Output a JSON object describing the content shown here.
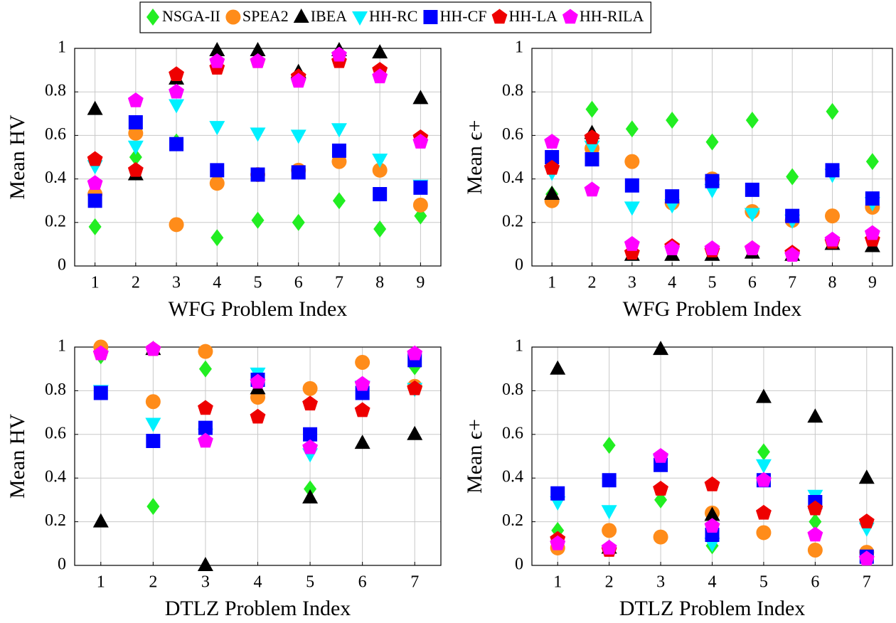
{
  "legend_position": "top",
  "chart_data": [
    {
      "type": "scatter",
      "x_label": "WFG Problem Index",
      "y_label": "Mean HV",
      "grid": true,
      "x": [
        1,
        2,
        3,
        4,
        5,
        6,
        7,
        8,
        9
      ],
      "xlim": [
        0.5,
        9.5
      ],
      "xticks": [
        1,
        2,
        3,
        4,
        5,
        6,
        7,
        8,
        9
      ],
      "ylim": [
        0,
        1
      ],
      "yticks": [
        0,
        0.2,
        0.4,
        0.6,
        0.8,
        1
      ],
      "series": [
        {
          "name": "NSGA-II",
          "color": "#22ee22",
          "marker": "diamond",
          "values": [
            0.18,
            0.5,
            0.57,
            0.13,
            0.21,
            0.2,
            0.3,
            0.17,
            0.23
          ]
        },
        {
          "name": "SPEA2",
          "color": "#ff8c1a",
          "marker": "circle",
          "values": [
            0.33,
            0.61,
            0.19,
            0.38,
            0.42,
            0.44,
            0.48,
            0.44,
            0.28
          ]
        },
        {
          "name": "IBEA",
          "color": "#000000",
          "marker": "triangle",
          "values": [
            0.72,
            0.42,
            0.86,
            0.99,
            0.99,
            0.89,
            0.99,
            0.98,
            0.77
          ]
        },
        {
          "name": "HH-RC",
          "color": "#00f0ff",
          "marker": "triangle-down",
          "values": [
            0.46,
            0.55,
            0.74,
            0.64,
            0.61,
            0.6,
            0.63,
            0.49,
            0.37
          ]
        },
        {
          "name": "HH-CF",
          "color": "#0000ff",
          "marker": "square",
          "values": [
            0.3,
            0.66,
            0.56,
            0.44,
            0.42,
            0.43,
            0.53,
            0.33,
            0.36
          ]
        },
        {
          "name": "HH-LA",
          "color": "#ee0000",
          "marker": "pentagon",
          "values": [
            0.49,
            0.44,
            0.88,
            0.91,
            0.94,
            0.87,
            0.94,
            0.9,
            0.59
          ]
        },
        {
          "name": "HH-RILA",
          "color": "#ff00ff",
          "marker": "pentagon",
          "values": [
            0.38,
            0.76,
            0.8,
            0.94,
            0.94,
            0.85,
            0.97,
            0.87,
            0.57
          ]
        }
      ]
    },
    {
      "type": "scatter",
      "x_label": "WFG Problem Index",
      "y_label": "Mean ϵ+",
      "grid": true,
      "x": [
        1,
        2,
        3,
        4,
        5,
        6,
        7,
        8,
        9
      ],
      "xlim": [
        0.5,
        9.5
      ],
      "xticks": [
        1,
        2,
        3,
        4,
        5,
        6,
        7,
        8,
        9
      ],
      "ylim": [
        0,
        1
      ],
      "yticks": [
        0,
        0.2,
        0.4,
        0.6,
        0.8,
        1
      ],
      "series": [
        {
          "name": "NSGA-II",
          "color": "#22ee22",
          "marker": "diamond",
          "values": [
            0.33,
            0.72,
            0.63,
            0.67,
            0.57,
            0.67,
            0.41,
            0.71,
            0.48
          ]
        },
        {
          "name": "SPEA2",
          "color": "#ff8c1a",
          "marker": "circle",
          "values": [
            0.3,
            0.54,
            0.48,
            0.29,
            0.4,
            0.25,
            0.21,
            0.23,
            0.27
          ]
        },
        {
          "name": "IBEA",
          "color": "#000000",
          "marker": "triangle",
          "values": [
            0.33,
            0.61,
            0.05,
            0.05,
            0.05,
            0.06,
            0.05,
            0.1,
            0.09
          ]
        },
        {
          "name": "HH-RC",
          "color": "#00f0ff",
          "marker": "triangle-down",
          "values": [
            0.43,
            0.55,
            0.27,
            0.28,
            0.35,
            0.24,
            0.21,
            0.42,
            0.29
          ]
        },
        {
          "name": "HH-CF",
          "color": "#0000ff",
          "marker": "square",
          "values": [
            0.5,
            0.49,
            0.37,
            0.32,
            0.39,
            0.35,
            0.23,
            0.44,
            0.31
          ]
        },
        {
          "name": "HH-LA",
          "color": "#ee0000",
          "marker": "pentagon",
          "values": [
            0.45,
            0.59,
            0.06,
            0.09,
            0.07,
            0.08,
            0.06,
            0.11,
            0.12
          ]
        },
        {
          "name": "HH-RILA",
          "color": "#ff00ff",
          "marker": "pentagon",
          "values": [
            0.57,
            0.35,
            0.1,
            0.08,
            0.08,
            0.08,
            0.05,
            0.12,
            0.15
          ]
        }
      ]
    },
    {
      "type": "scatter",
      "x_label": "DTLZ Problem Index",
      "y_label": "Mean HV",
      "grid": true,
      "x": [
        1,
        2,
        3,
        4,
        5,
        6,
        7
      ],
      "xlim": [
        0.5,
        7.5
      ],
      "xticks": [
        1,
        2,
        3,
        4,
        5,
        6,
        7
      ],
      "ylim": [
        0,
        1
      ],
      "yticks": [
        0,
        0.2,
        0.4,
        0.6,
        0.8,
        1
      ],
      "series": [
        {
          "name": "NSGA-II",
          "color": "#22ee22",
          "marker": "diamond",
          "values": [
            0.96,
            0.27,
            0.9,
            0.83,
            0.35,
            0.82,
            0.91
          ]
        },
        {
          "name": "SPEA2",
          "color": "#ff8c1a",
          "marker": "circle",
          "values": [
            1.0,
            0.75,
            0.98,
            0.77,
            0.81,
            0.93,
            0.82
          ]
        },
        {
          "name": "IBEA",
          "color": "#000000",
          "marker": "triangle",
          "values": [
            0.2,
            0.99,
            0.0,
            0.81,
            0.31,
            0.56,
            0.6
          ]
        },
        {
          "name": "HH-RC",
          "color": "#00f0ff",
          "marker": "triangle-down",
          "values": [
            0.8,
            0.65,
            0.6,
            0.88,
            0.51,
            0.82,
            0.81
          ]
        },
        {
          "name": "HH-CF",
          "color": "#0000ff",
          "marker": "square",
          "values": [
            0.79,
            0.57,
            0.63,
            0.85,
            0.6,
            0.79,
            0.94
          ]
        },
        {
          "name": "HH-LA",
          "color": "#ee0000",
          "marker": "pentagon",
          "values": [
            0.97,
            0.99,
            0.72,
            0.68,
            0.74,
            0.71,
            0.81
          ]
        },
        {
          "name": "HH-RILA",
          "color": "#ff00ff",
          "marker": "pentagon",
          "values": [
            0.97,
            0.99,
            0.57,
            0.84,
            0.54,
            0.83,
            0.97
          ]
        }
      ]
    },
    {
      "type": "scatter",
      "x_label": "DTLZ Problem Index",
      "y_label": "Mean ϵ+",
      "grid": true,
      "x": [
        1,
        2,
        3,
        4,
        5,
        6,
        7
      ],
      "xlim": [
        0.5,
        7.5
      ],
      "xticks": [
        1,
        2,
        3,
        4,
        5,
        6,
        7
      ],
      "ylim": [
        0,
        1
      ],
      "yticks": [
        0,
        0.2,
        0.4,
        0.6,
        0.8,
        1
      ],
      "series": [
        {
          "name": "NSGA-II",
          "color": "#22ee22",
          "marker": "diamond",
          "values": [
            0.16,
            0.55,
            0.3,
            0.09,
            0.52,
            0.2,
            0.05
          ]
        },
        {
          "name": "SPEA2",
          "color": "#ff8c1a",
          "marker": "circle",
          "values": [
            0.08,
            0.16,
            0.13,
            0.24,
            0.15,
            0.07,
            0.06
          ]
        },
        {
          "name": "IBEA",
          "color": "#000000",
          "marker": "triangle",
          "values": [
            0.9,
            0.08,
            0.99,
            0.23,
            0.77,
            0.68,
            0.4
          ]
        },
        {
          "name": "HH-RC",
          "color": "#00f0ff",
          "marker": "triangle-down",
          "values": [
            0.29,
            0.25,
            0.48,
            0.1,
            0.46,
            0.32,
            0.17
          ]
        },
        {
          "name": "HH-CF",
          "color": "#0000ff",
          "marker": "square",
          "values": [
            0.33,
            0.39,
            0.46,
            0.14,
            0.39,
            0.29,
            0.04
          ]
        },
        {
          "name": "HH-LA",
          "color": "#ee0000",
          "marker": "pentagon",
          "values": [
            0.12,
            0.07,
            0.35,
            0.37,
            0.24,
            0.26,
            0.2
          ]
        },
        {
          "name": "HH-RILA",
          "color": "#ff00ff",
          "marker": "pentagon",
          "values": [
            0.1,
            0.08,
            0.5,
            0.18,
            0.39,
            0.14,
            0.03
          ]
        }
      ]
    }
  ]
}
